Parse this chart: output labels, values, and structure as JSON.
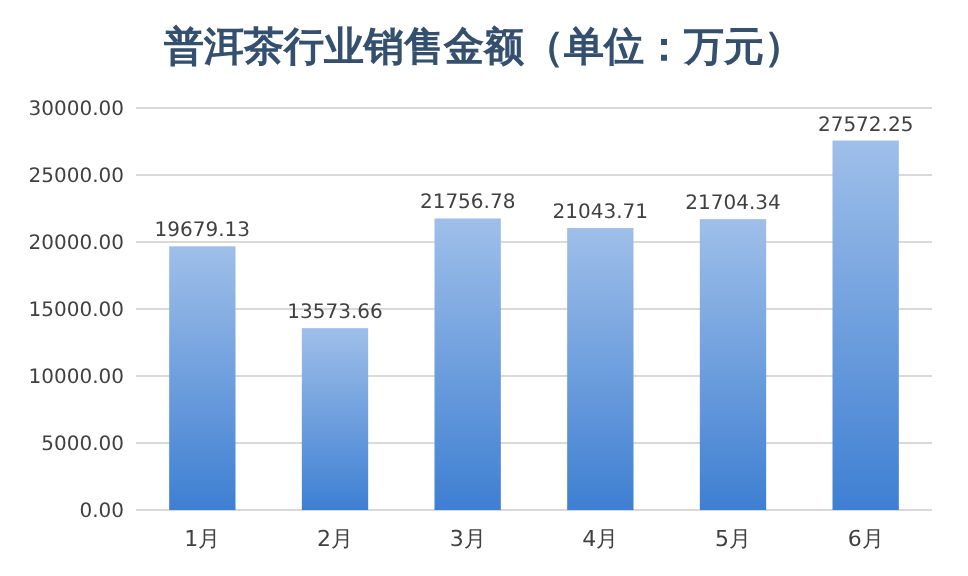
{
  "chart_data": {
    "type": "bar",
    "title": "普洱茶行业销售金额（单位：万元）",
    "categories": [
      "1月",
      "2月",
      "3月",
      "4月",
      "5月",
      "6月"
    ],
    "values": [
      19679.13,
      13573.66,
      21756.78,
      21043.71,
      21704.34,
      27572.25
    ],
    "color": "#3e7fd2",
    "ylim": [
      0,
      30000
    ],
    "yticks": [
      {
        "value": 0,
        "label": "0.00"
      },
      {
        "value": 5000,
        "label": "5000.00"
      },
      {
        "value": 10000,
        "label": "10000.00"
      },
      {
        "value": 15000,
        "label": "15000.00"
      },
      {
        "value": 20000,
        "label": "20000.00"
      },
      {
        "value": 25000,
        "label": "25000.00"
      },
      {
        "value": 30000,
        "label": "30000.00"
      }
    ],
    "grid": "y",
    "data_labels": true
  }
}
